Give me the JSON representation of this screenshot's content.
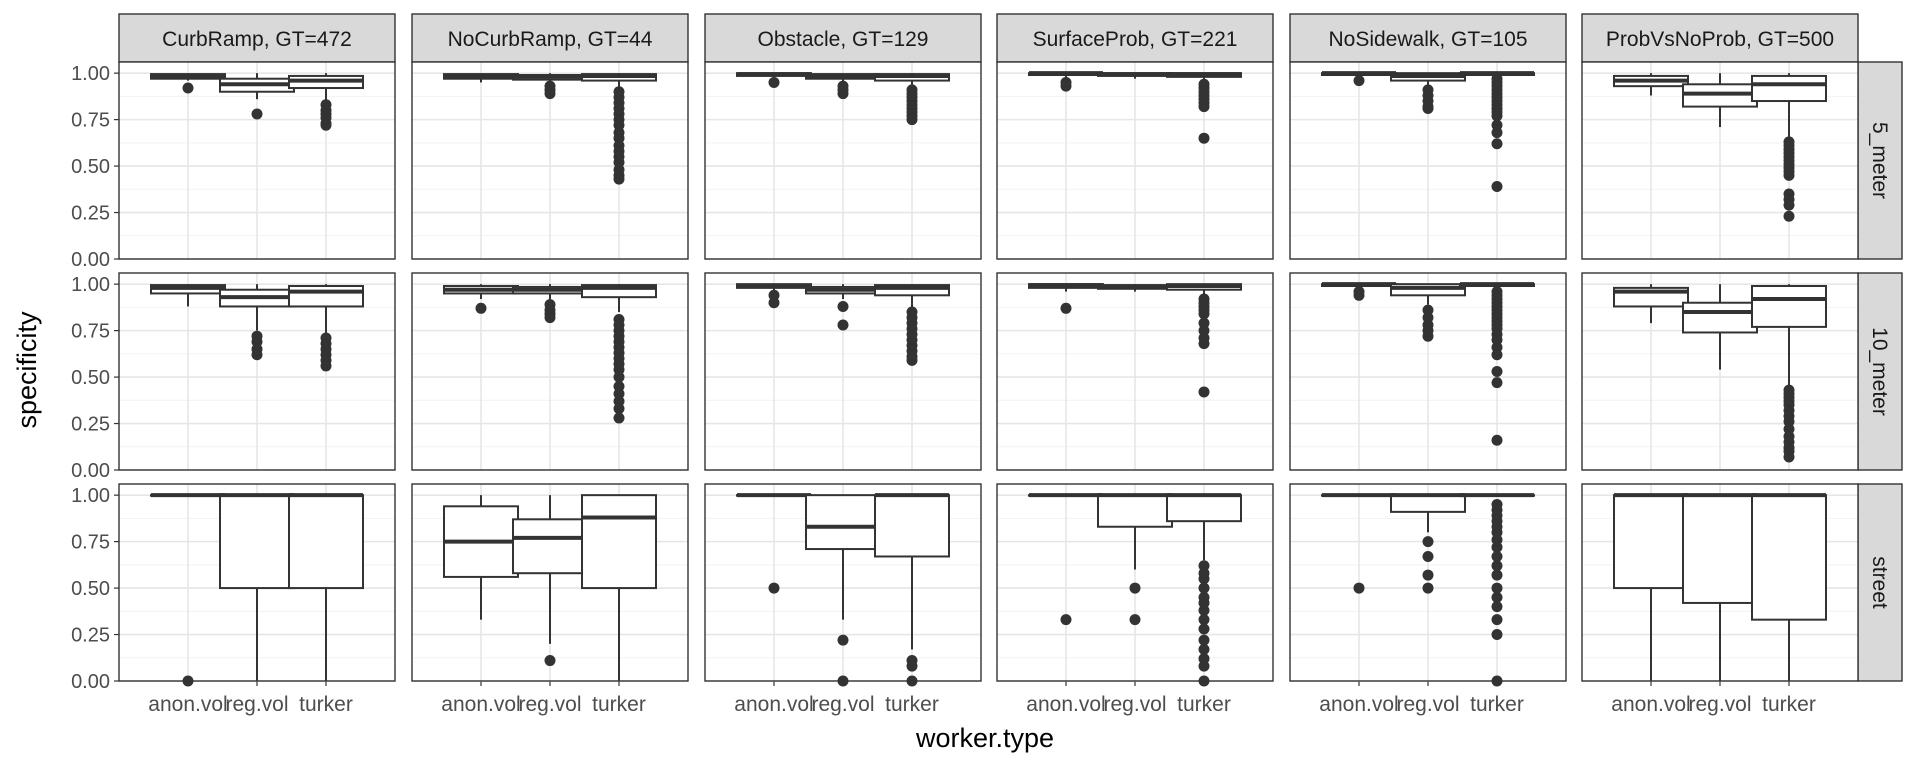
{
  "chart_data": {
    "type": "boxplot",
    "title": "",
    "xlabel": "worker.type",
    "ylabel": "specificity",
    "categories": [
      "anon.vol",
      "reg.vol",
      "turker"
    ],
    "ylim": [
      0,
      1.06
    ],
    "y_ticks": [
      "0.00",
      "0.25",
      "0.50",
      "0.75",
      "1.00"
    ],
    "y_tick_values": [
      0,
      0.25,
      0.5,
      0.75,
      1.0
    ],
    "grid": true,
    "facet_columns": [
      "CurbRamp, GT=472",
      "NoCurbRamp, GT=44",
      "Obstacle, GT=129",
      "SurfaceProb, GT=221",
      "NoSidewalk, GT=105",
      "ProbVsNoProb, GT=500"
    ],
    "facet_rows": [
      "5_meter",
      "10_meter",
      "street"
    ],
    "panels": [
      [
        {
          "boxes": [
            {
              "q1": 0.97,
              "median": 0.985,
              "q3": 0.995,
              "lo": 0.96,
              "hi": 1.0,
              "out": [
                0.92
              ]
            },
            {
              "q1": 0.9,
              "median": 0.94,
              "q3": 0.97,
              "lo": 0.86,
              "hi": 1.0,
              "out": [
                0.78
              ]
            },
            {
              "q1": 0.92,
              "median": 0.96,
              "q3": 0.985,
              "lo": 0.85,
              "hi": 1.0,
              "out": [
                0.83,
                0.8,
                0.78,
                0.76,
                0.73,
                0.72
              ]
            }
          ]
        },
        {
          "boxes": [
            {
              "q1": 0.97,
              "median": 0.985,
              "q3": 0.995,
              "lo": 0.95,
              "hi": 1.0,
              "out": []
            },
            {
              "q1": 0.965,
              "median": 0.98,
              "q3": 0.99,
              "lo": 0.94,
              "hi": 1.0,
              "out": [
                0.93,
                0.91,
                0.89
              ]
            },
            {
              "q1": 0.96,
              "median": 0.985,
              "q3": 0.995,
              "lo": 0.92,
              "hi": 1.0,
              "out": [
                0.9,
                0.87,
                0.84,
                0.81,
                0.78,
                0.75,
                0.72,
                0.68,
                0.65,
                0.61,
                0.58,
                0.55,
                0.52,
                0.48,
                0.45,
                0.43
              ]
            }
          ]
        },
        {
          "boxes": [
            {
              "q1": 0.985,
              "median": 0.995,
              "q3": 1.0,
              "lo": 0.97,
              "hi": 1.0,
              "out": [
                0.95
              ]
            },
            {
              "q1": 0.97,
              "median": 0.985,
              "q3": 0.995,
              "lo": 0.95,
              "hi": 1.0,
              "out": [
                0.93,
                0.91,
                0.89
              ]
            },
            {
              "q1": 0.96,
              "median": 0.985,
              "q3": 0.995,
              "lo": 0.93,
              "hi": 1.0,
              "out": [
                0.91,
                0.89,
                0.87,
                0.85,
                0.83,
                0.81,
                0.79,
                0.77,
                0.75
              ]
            }
          ]
        },
        {
          "boxes": [
            {
              "q1": 0.99,
              "median": 1.0,
              "q3": 1.0,
              "lo": 0.97,
              "hi": 1.0,
              "out": [
                0.95,
                0.93
              ]
            },
            {
              "q1": 0.985,
              "median": 0.995,
              "q3": 1.0,
              "lo": 0.97,
              "hi": 1.0,
              "out": []
            },
            {
              "q1": 0.98,
              "median": 0.995,
              "q3": 1.0,
              "lo": 0.96,
              "hi": 1.0,
              "out": [
                0.94,
                0.92,
                0.9,
                0.88,
                0.86,
                0.84,
                0.82,
                0.65
              ]
            }
          ]
        },
        {
          "boxes": [
            {
              "q1": 0.99,
              "median": 1.0,
              "q3": 1.0,
              "lo": 0.98,
              "hi": 1.0,
              "out": [
                0.96
              ]
            },
            {
              "q1": 0.96,
              "median": 0.985,
              "q3": 1.0,
              "lo": 0.93,
              "hi": 1.0,
              "out": [
                0.91,
                0.88,
                0.85,
                0.82,
                0.81
              ]
            },
            {
              "q1": 0.99,
              "median": 1.0,
              "q3": 1.0,
              "lo": 0.98,
              "hi": 1.0,
              "out": [
                0.97,
                0.95,
                0.93,
                0.91,
                0.89,
                0.87,
                0.85,
                0.83,
                0.81,
                0.79,
                0.77,
                0.72,
                0.68,
                0.62,
                0.39
              ]
            }
          ]
        },
        {
          "boxes": [
            {
              "q1": 0.93,
              "median": 0.96,
              "q3": 0.985,
              "lo": 0.88,
              "hi": 1.0,
              "out": []
            },
            {
              "q1": 0.82,
              "median": 0.89,
              "q3": 0.94,
              "lo": 0.71,
              "hi": 1.0,
              "out": []
            },
            {
              "q1": 0.85,
              "median": 0.94,
              "q3": 0.985,
              "lo": 0.65,
              "hi": 1.0,
              "out": [
                0.63,
                0.61,
                0.59,
                0.57,
                0.55,
                0.53,
                0.51,
                0.49,
                0.47,
                0.45,
                0.35,
                0.32,
                0.29,
                0.23
              ]
            }
          ]
        }
      ],
      [
        {
          "boxes": [
            {
              "q1": 0.95,
              "median": 0.98,
              "q3": 0.995,
              "lo": 0.88,
              "hi": 1.0,
              "out": []
            },
            {
              "q1": 0.88,
              "median": 0.93,
              "q3": 0.97,
              "lo": 0.75,
              "hi": 1.0,
              "out": [
                0.72,
                0.69,
                0.65,
                0.62
              ]
            },
            {
              "q1": 0.88,
              "median": 0.96,
              "q3": 0.99,
              "lo": 0.73,
              "hi": 1.0,
              "out": [
                0.71,
                0.68,
                0.65,
                0.62,
                0.59,
                0.56
              ]
            }
          ]
        },
        {
          "boxes": [
            {
              "q1": 0.95,
              "median": 0.97,
              "q3": 0.99,
              "lo": 0.92,
              "hi": 1.0,
              "out": [
                0.87
              ]
            },
            {
              "q1": 0.95,
              "median": 0.97,
              "q3": 0.985,
              "lo": 0.91,
              "hi": 1.0,
              "out": [
                0.89,
                0.86,
                0.84,
                0.82
              ]
            },
            {
              "q1": 0.93,
              "median": 0.98,
              "q3": 0.995,
              "lo": 0.85,
              "hi": 1.0,
              "out": [
                0.81,
                0.78,
                0.75,
                0.72,
                0.69,
                0.66,
                0.63,
                0.6,
                0.57,
                0.54,
                0.5,
                0.45,
                0.41,
                0.37,
                0.33,
                0.28
              ]
            }
          ]
        },
        {
          "boxes": [
            {
              "q1": 0.98,
              "median": 0.99,
              "q3": 1.0,
              "lo": 0.96,
              "hi": 1.0,
              "out": [
                0.94,
                0.9
              ]
            },
            {
              "q1": 0.95,
              "median": 0.97,
              "q3": 0.985,
              "lo": 0.92,
              "hi": 1.0,
              "out": [
                0.88,
                0.78
              ]
            },
            {
              "q1": 0.94,
              "median": 0.98,
              "q3": 0.995,
              "lo": 0.87,
              "hi": 1.0,
              "out": [
                0.85,
                0.82,
                0.79,
                0.76,
                0.73,
                0.7,
                0.67,
                0.64,
                0.61,
                0.59
              ]
            }
          ]
        },
        {
          "boxes": [
            {
              "q1": 0.98,
              "median": 0.995,
              "q3": 1.0,
              "lo": 0.96,
              "hi": 1.0,
              "out": [
                0.87
              ]
            },
            {
              "q1": 0.975,
              "median": 0.985,
              "q3": 0.995,
              "lo": 0.96,
              "hi": 1.0,
              "out": []
            },
            {
              "q1": 0.97,
              "median": 0.99,
              "q3": 1.0,
              "lo": 0.94,
              "hi": 1.0,
              "out": [
                0.92,
                0.9,
                0.88,
                0.86,
                0.84,
                0.79,
                0.75,
                0.71,
                0.68,
                0.42
              ]
            }
          ]
        },
        {
          "boxes": [
            {
              "q1": 0.99,
              "median": 1.0,
              "q3": 1.0,
              "lo": 0.97,
              "hi": 1.0,
              "out": [
                0.96,
                0.94
              ]
            },
            {
              "q1": 0.94,
              "median": 0.98,
              "q3": 1.0,
              "lo": 0.89,
              "hi": 1.0,
              "out": [
                0.86,
                0.82,
                0.78,
                0.75,
                0.72
              ]
            },
            {
              "q1": 0.99,
              "median": 1.0,
              "q3": 1.0,
              "lo": 0.98,
              "hi": 1.0,
              "out": [
                0.96,
                0.94,
                0.92,
                0.9,
                0.88,
                0.86,
                0.84,
                0.82,
                0.8,
                0.78,
                0.76,
                0.73,
                0.7,
                0.66,
                0.62,
                0.53,
                0.47,
                0.16
              ]
            }
          ]
        },
        {
          "boxes": [
            {
              "q1": 0.88,
              "median": 0.96,
              "q3": 0.98,
              "lo": 0.79,
              "hi": 1.0,
              "out": []
            },
            {
              "q1": 0.74,
              "median": 0.85,
              "q3": 0.9,
              "lo": 0.54,
              "hi": 1.0,
              "out": []
            },
            {
              "q1": 0.77,
              "median": 0.92,
              "q3": 0.99,
              "lo": 0.45,
              "hi": 1.0,
              "out": [
                0.43,
                0.41,
                0.39,
                0.37,
                0.35,
                0.32,
                0.29,
                0.26,
                0.22,
                0.18,
                0.15,
                0.12,
                0.1,
                0.07
              ]
            }
          ]
        }
      ],
      [
        {
          "boxes": [
            {
              "q1": 1.0,
              "median": 1.0,
              "q3": 1.0,
              "lo": 1.0,
              "hi": 1.0,
              "out": [
                0.0
              ]
            },
            {
              "q1": 0.5,
              "median": 1.0,
              "q3": 1.0,
              "lo": 0.0,
              "hi": 1.0,
              "out": []
            },
            {
              "q1": 0.5,
              "median": 1.0,
              "q3": 1.0,
              "lo": 0.0,
              "hi": 1.0,
              "out": []
            }
          ]
        },
        {
          "boxes": [
            {
              "q1": 0.56,
              "median": 0.75,
              "q3": 0.94,
              "lo": 0.33,
              "hi": 1.0,
              "out": []
            },
            {
              "q1": 0.58,
              "median": 0.77,
              "q3": 0.87,
              "lo": 0.2,
              "hi": 1.0,
              "out": [
                0.11
              ]
            },
            {
              "q1": 0.5,
              "median": 0.88,
              "q3": 1.0,
              "lo": 0.0,
              "hi": 1.0,
              "out": []
            }
          ]
        },
        {
          "boxes": [
            {
              "q1": 1.0,
              "median": 1.0,
              "q3": 1.0,
              "lo": 1.0,
              "hi": 1.0,
              "out": [
                0.5
              ]
            },
            {
              "q1": 0.71,
              "median": 0.83,
              "q3": 1.0,
              "lo": 0.33,
              "hi": 1.0,
              "out": [
                0.22,
                0.0
              ]
            },
            {
              "q1": 0.67,
              "median": 1.0,
              "q3": 1.0,
              "lo": 0.17,
              "hi": 1.0,
              "out": [
                0.11,
                0.08,
                0.0
              ]
            }
          ]
        },
        {
          "boxes": [
            {
              "q1": 1.0,
              "median": 1.0,
              "q3": 1.0,
              "lo": 1.0,
              "hi": 1.0,
              "out": [
                0.33
              ]
            },
            {
              "q1": 0.83,
              "median": 1.0,
              "q3": 1.0,
              "lo": 0.6,
              "hi": 1.0,
              "out": [
                0.5,
                0.33
              ]
            },
            {
              "q1": 0.86,
              "median": 1.0,
              "q3": 1.0,
              "lo": 0.65,
              "hi": 1.0,
              "out": [
                0.62,
                0.58,
                0.55,
                0.5,
                0.45,
                0.42,
                0.38,
                0.33,
                0.28,
                0.22,
                0.17,
                0.12,
                0.08,
                0.0
              ]
            }
          ]
        },
        {
          "boxes": [
            {
              "q1": 1.0,
              "median": 1.0,
              "q3": 1.0,
              "lo": 1.0,
              "hi": 1.0,
              "out": [
                0.5
              ]
            },
            {
              "q1": 0.91,
              "median": 1.0,
              "q3": 1.0,
              "lo": 0.8,
              "hi": 1.0,
              "out": [
                0.75,
                0.67,
                0.57,
                0.5
              ]
            },
            {
              "q1": 1.0,
              "median": 1.0,
              "q3": 1.0,
              "lo": 1.0,
              "hi": 1.0,
              "out": [
                0.95,
                0.92,
                0.89,
                0.86,
                0.83,
                0.8,
                0.76,
                0.72,
                0.67,
                0.62,
                0.57,
                0.5,
                0.45,
                0.4,
                0.33,
                0.25,
                0.0
              ]
            }
          ]
        },
        {
          "boxes": [
            {
              "q1": 0.5,
              "median": 1.0,
              "q3": 1.0,
              "lo": 0.0,
              "hi": 1.0,
              "out": []
            },
            {
              "q1": 0.42,
              "median": 1.0,
              "q3": 1.0,
              "lo": 0.0,
              "hi": 1.0,
              "out": []
            },
            {
              "q1": 0.33,
              "median": 1.0,
              "q3": 1.0,
              "lo": 0.0,
              "hi": 1.0,
              "out": []
            }
          ]
        }
      ]
    ]
  }
}
